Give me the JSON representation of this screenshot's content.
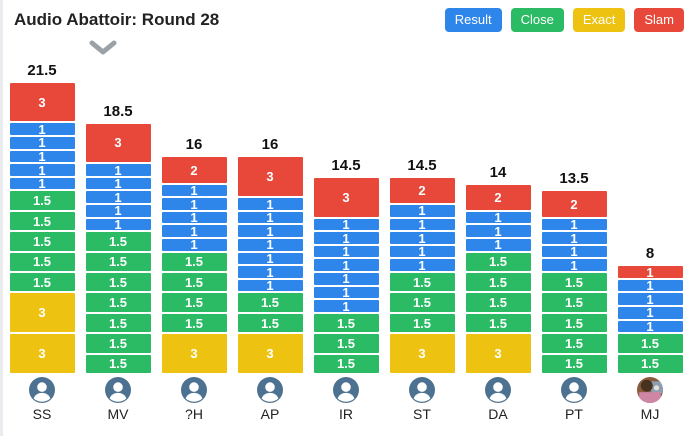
{
  "header": {
    "title": "Audio Abattoir: Round 28"
  },
  "legend": {
    "buttons": [
      {
        "label": "Result",
        "color": "#2E86EB"
      },
      {
        "label": "Close",
        "color": "#2BBB65"
      },
      {
        "label": "Exact",
        "color": "#EDC211"
      },
      {
        "label": "Slam",
        "color": "#E8483A"
      }
    ]
  },
  "colors": {
    "result": "#2E86EB",
    "close": "#2BBB65",
    "exact": "#EDC211",
    "slam": "#E8483A",
    "avatar": "#4D7291",
    "chevron": "#9AA2A8"
  },
  "chart_data": {
    "type": "bar",
    "stacked": true,
    "legend_position": "top-right",
    "title": "Audio Abattoir: Round 28",
    "categories": [
      "SS",
      "MV",
      "?H",
      "AP",
      "IR",
      "ST",
      "DA",
      "PT",
      "MJ"
    ],
    "totals": [
      21.5,
      18.5,
      16,
      16,
      14.5,
      14.5,
      14,
      13.5,
      8
    ],
    "series_legend": [
      "Result",
      "Close",
      "Exact",
      "Slam"
    ],
    "columns": [
      {
        "player": "SS",
        "total": "21.5",
        "avatar": "icon",
        "segments": [
          {
            "label": "3",
            "value": 3,
            "kind": "slam"
          },
          {
            "label": "1",
            "value": 1,
            "kind": "result"
          },
          {
            "label": "1",
            "value": 1,
            "kind": "result"
          },
          {
            "label": "1",
            "value": 1,
            "kind": "result"
          },
          {
            "label": "1",
            "value": 1,
            "kind": "result"
          },
          {
            "label": "1",
            "value": 1,
            "kind": "result"
          },
          {
            "label": "1.5",
            "value": 1.5,
            "kind": "close"
          },
          {
            "label": "1.5",
            "value": 1.5,
            "kind": "close"
          },
          {
            "label": "1.5",
            "value": 1.5,
            "kind": "close"
          },
          {
            "label": "1.5",
            "value": 1.5,
            "kind": "close"
          },
          {
            "label": "1.5",
            "value": 1.5,
            "kind": "close"
          },
          {
            "label": "3",
            "value": 3,
            "kind": "exact"
          },
          {
            "label": "3",
            "value": 3,
            "kind": "exact"
          }
        ]
      },
      {
        "player": "MV",
        "total": "18.5",
        "avatar": "icon",
        "segments": [
          {
            "label": "3",
            "value": 3,
            "kind": "slam"
          },
          {
            "label": "1",
            "value": 1,
            "kind": "result"
          },
          {
            "label": "1",
            "value": 1,
            "kind": "result"
          },
          {
            "label": "1",
            "value": 1,
            "kind": "result"
          },
          {
            "label": "1",
            "value": 1,
            "kind": "result"
          },
          {
            "label": "1",
            "value": 1,
            "kind": "result"
          },
          {
            "label": "1.5",
            "value": 1.5,
            "kind": "close"
          },
          {
            "label": "1.5",
            "value": 1.5,
            "kind": "close"
          },
          {
            "label": "1.5",
            "value": 1.5,
            "kind": "close"
          },
          {
            "label": "1.5",
            "value": 1.5,
            "kind": "close"
          },
          {
            "label": "1.5",
            "value": 1.5,
            "kind": "close"
          },
          {
            "label": "1.5",
            "value": 1.5,
            "kind": "close"
          },
          {
            "label": "1.5",
            "value": 1.5,
            "kind": "close"
          }
        ]
      },
      {
        "player": "?H",
        "total": "16",
        "avatar": "icon",
        "segments": [
          {
            "label": "2",
            "value": 2,
            "kind": "slam"
          },
          {
            "label": "1",
            "value": 1,
            "kind": "result"
          },
          {
            "label": "1",
            "value": 1,
            "kind": "result"
          },
          {
            "label": "1",
            "value": 1,
            "kind": "result"
          },
          {
            "label": "1",
            "value": 1,
            "kind": "result"
          },
          {
            "label": "1",
            "value": 1,
            "kind": "result"
          },
          {
            "label": "1.5",
            "value": 1.5,
            "kind": "close"
          },
          {
            "label": "1.5",
            "value": 1.5,
            "kind": "close"
          },
          {
            "label": "1.5",
            "value": 1.5,
            "kind": "close"
          },
          {
            "label": "1.5",
            "value": 1.5,
            "kind": "close"
          },
          {
            "label": "3",
            "value": 3,
            "kind": "exact"
          }
        ]
      },
      {
        "player": "AP",
        "total": "16",
        "avatar": "icon",
        "segments": [
          {
            "label": "3",
            "value": 3,
            "kind": "slam"
          },
          {
            "label": "1",
            "value": 1,
            "kind": "result"
          },
          {
            "label": "1",
            "value": 1,
            "kind": "result"
          },
          {
            "label": "1",
            "value": 1,
            "kind": "result"
          },
          {
            "label": "1",
            "value": 1,
            "kind": "result"
          },
          {
            "label": "1",
            "value": 1,
            "kind": "result"
          },
          {
            "label": "1",
            "value": 1,
            "kind": "result"
          },
          {
            "label": "1",
            "value": 1,
            "kind": "result"
          },
          {
            "label": "1.5",
            "value": 1.5,
            "kind": "close"
          },
          {
            "label": "1.5",
            "value": 1.5,
            "kind": "close"
          },
          {
            "label": "3",
            "value": 3,
            "kind": "exact"
          }
        ]
      },
      {
        "player": "IR",
        "total": "14.5",
        "avatar": "icon",
        "segments": [
          {
            "label": "3",
            "value": 3,
            "kind": "slam"
          },
          {
            "label": "1",
            "value": 1,
            "kind": "result"
          },
          {
            "label": "1",
            "value": 1,
            "kind": "result"
          },
          {
            "label": "1",
            "value": 1,
            "kind": "result"
          },
          {
            "label": "1",
            "value": 1,
            "kind": "result"
          },
          {
            "label": "1",
            "value": 1,
            "kind": "result"
          },
          {
            "label": "1",
            "value": 1,
            "kind": "result"
          },
          {
            "label": "1",
            "value": 1,
            "kind": "result"
          },
          {
            "label": "1.5",
            "value": 1.5,
            "kind": "close"
          },
          {
            "label": "1.5",
            "value": 1.5,
            "kind": "close"
          },
          {
            "label": "1.5",
            "value": 1.5,
            "kind": "close"
          }
        ]
      },
      {
        "player": "ST",
        "total": "14.5",
        "avatar": "icon",
        "segments": [
          {
            "label": "2",
            "value": 2,
            "kind": "slam"
          },
          {
            "label": "1",
            "value": 1,
            "kind": "result"
          },
          {
            "label": "1",
            "value": 1,
            "kind": "result"
          },
          {
            "label": "1",
            "value": 1,
            "kind": "result"
          },
          {
            "label": "1",
            "value": 1,
            "kind": "result"
          },
          {
            "label": "1",
            "value": 1,
            "kind": "result"
          },
          {
            "label": "1.5",
            "value": 1.5,
            "kind": "close"
          },
          {
            "label": "1.5",
            "value": 1.5,
            "kind": "close"
          },
          {
            "label": "1.5",
            "value": 1.5,
            "kind": "close"
          },
          {
            "label": "3",
            "value": 3,
            "kind": "exact"
          }
        ]
      },
      {
        "player": "DA",
        "total": "14",
        "avatar": "icon",
        "segments": [
          {
            "label": "2",
            "value": 2,
            "kind": "slam"
          },
          {
            "label": "1",
            "value": 1,
            "kind": "result"
          },
          {
            "label": "1",
            "value": 1,
            "kind": "result"
          },
          {
            "label": "1",
            "value": 1,
            "kind": "result"
          },
          {
            "label": "1.5",
            "value": 1.5,
            "kind": "close"
          },
          {
            "label": "1.5",
            "value": 1.5,
            "kind": "close"
          },
          {
            "label": "1.5",
            "value": 1.5,
            "kind": "close"
          },
          {
            "label": "1.5",
            "value": 1.5,
            "kind": "close"
          },
          {
            "label": "3",
            "value": 3,
            "kind": "exact"
          }
        ]
      },
      {
        "player": "PT",
        "total": "13.5",
        "avatar": "icon",
        "segments": [
          {
            "label": "2",
            "value": 2,
            "kind": "slam"
          },
          {
            "label": "1",
            "value": 1,
            "kind": "result"
          },
          {
            "label": "1",
            "value": 1,
            "kind": "result"
          },
          {
            "label": "1",
            "value": 1,
            "kind": "result"
          },
          {
            "label": "1",
            "value": 1,
            "kind": "result"
          },
          {
            "label": "1.5",
            "value": 1.5,
            "kind": "close"
          },
          {
            "label": "1.5",
            "value": 1.5,
            "kind": "close"
          },
          {
            "label": "1.5",
            "value": 1.5,
            "kind": "close"
          },
          {
            "label": "1.5",
            "value": 1.5,
            "kind": "close"
          },
          {
            "label": "1.5",
            "value": 1.5,
            "kind": "close"
          }
        ]
      },
      {
        "player": "MJ",
        "total": "8",
        "avatar": "photo",
        "segments": [
          {
            "label": "1",
            "value": 1,
            "kind": "slam"
          },
          {
            "label": "1",
            "value": 1,
            "kind": "result"
          },
          {
            "label": "1",
            "value": 1,
            "kind": "result"
          },
          {
            "label": "1",
            "value": 1,
            "kind": "result"
          },
          {
            "label": "1",
            "value": 1,
            "kind": "result"
          },
          {
            "label": "1.5",
            "value": 1.5,
            "kind": "close"
          },
          {
            "label": "1.5",
            "value": 1.5,
            "kind": "close"
          }
        ]
      }
    ]
  }
}
